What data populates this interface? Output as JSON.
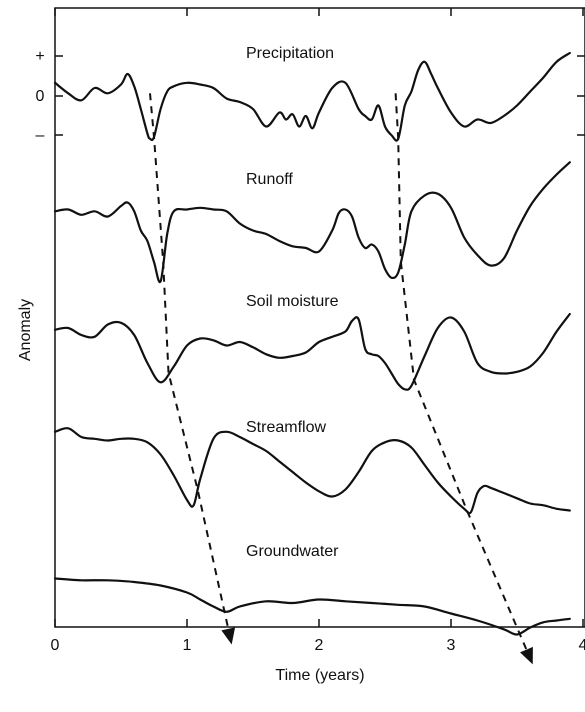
{
  "chart_data": {
    "type": "line",
    "title": "",
    "xlabel": "Time (years)",
    "ylabel": "Anomaly",
    "xlim": [
      0,
      4
    ],
    "x_ticks": [
      "0",
      "1",
      "2",
      "3",
      "4"
    ],
    "y_ticks": [
      "+",
      "0",
      "–"
    ],
    "grid": false,
    "series": [
      {
        "name": "Precipitation",
        "x": [
          0,
          0.1,
          0.2,
          0.3,
          0.4,
          0.5,
          0.55,
          0.6,
          0.65,
          0.7,
          0.72,
          0.75,
          0.8,
          0.85,
          0.9,
          1.0,
          1.1,
          1.2,
          1.3,
          1.4,
          1.5,
          1.6,
          1.7,
          1.75,
          1.8,
          1.85,
          1.9,
          1.95,
          2.0,
          2.1,
          2.2,
          2.3,
          2.35,
          2.4,
          2.45,
          2.5,
          2.55,
          2.6,
          2.65,
          2.7,
          2.75,
          2.8,
          2.85,
          2.9,
          3.0,
          3.1,
          3.2,
          3.3,
          3.4,
          3.5,
          3.6,
          3.7,
          3.8,
          3.9
        ],
        "y": [
          0.35,
          0.05,
          -0.15,
          0.2,
          0.05,
          0.3,
          0.6,
          0.25,
          -0.4,
          -1.1,
          -1.25,
          -1.2,
          -0.4,
          0.1,
          0.25,
          0.35,
          0.3,
          0.2,
          -0.1,
          -0.2,
          -0.4,
          -0.9,
          -0.5,
          -0.7,
          -0.55,
          -0.9,
          -0.6,
          -0.95,
          -0.5,
          0.2,
          0.35,
          -0.4,
          -0.6,
          -0.7,
          -0.3,
          -0.9,
          -1.15,
          -1.25,
          -0.3,
          0.1,
          0.7,
          0.95,
          0.6,
          0.2,
          -0.5,
          -0.9,
          -0.7,
          -0.8,
          -0.6,
          -0.3,
          0.1,
          0.5,
          0.95,
          1.2
        ]
      },
      {
        "name": "Runoff",
        "x": [
          0,
          0.1,
          0.2,
          0.3,
          0.4,
          0.5,
          0.55,
          0.6,
          0.65,
          0.7,
          0.75,
          0.8,
          0.85,
          0.9,
          1.0,
          1.1,
          1.2,
          1.3,
          1.4,
          1.5,
          1.6,
          1.7,
          1.8,
          1.9,
          2.0,
          2.1,
          2.15,
          2.2,
          2.25,
          2.3,
          2.35,
          2.4,
          2.45,
          2.5,
          2.55,
          2.6,
          2.65,
          2.7,
          2.8,
          2.9,
          3.0,
          3.1,
          3.2,
          3.3,
          3.4,
          3.5,
          3.6,
          3.7,
          3.8,
          3.9
        ],
        "y": [
          0.05,
          0.1,
          -0.05,
          0.05,
          -0.1,
          0.2,
          0.3,
          0.05,
          -0.5,
          -0.8,
          -1.4,
          -1.95,
          -0.6,
          0.05,
          0.1,
          0.15,
          0.1,
          0.05,
          -0.3,
          -0.5,
          -0.6,
          -0.8,
          -0.95,
          -1.0,
          -1.1,
          -0.5,
          0.0,
          0.1,
          -0.1,
          -0.7,
          -1.0,
          -0.9,
          -1.1,
          -1.6,
          -1.85,
          -1.7,
          -0.9,
          0.05,
          0.5,
          0.55,
          0.15,
          -0.7,
          -1.2,
          -1.5,
          -1.3,
          -0.5,
          0.2,
          0.7,
          1.1,
          1.45
        ]
      },
      {
        "name": "Soil moisture",
        "x": [
          0,
          0.1,
          0.2,
          0.3,
          0.4,
          0.5,
          0.6,
          0.7,
          0.8,
          0.9,
          1.0,
          1.1,
          1.2,
          1.3,
          1.4,
          1.5,
          1.6,
          1.7,
          1.8,
          1.9,
          2.0,
          2.1,
          2.2,
          2.25,
          2.3,
          2.35,
          2.4,
          2.45,
          2.5,
          2.55,
          2.6,
          2.65,
          2.7,
          2.8,
          2.9,
          3.0,
          3.1,
          3.2,
          3.3,
          3.4,
          3.5,
          3.6,
          3.7,
          3.8,
          3.9
        ],
        "y": [
          0.15,
          0.2,
          0.0,
          -0.05,
          0.3,
          0.35,
          0.0,
          -0.8,
          -1.35,
          -0.9,
          -0.3,
          -0.1,
          -0.15,
          -0.3,
          -0.2,
          -0.35,
          -0.55,
          -0.65,
          -0.6,
          -0.5,
          -0.2,
          -0.05,
          0.1,
          0.4,
          0.45,
          -0.4,
          -0.55,
          -0.6,
          -0.8,
          -1.1,
          -1.4,
          -1.55,
          -1.45,
          -0.6,
          0.2,
          0.5,
          0.1,
          -0.8,
          -1.05,
          -1.1,
          -1.05,
          -0.9,
          -0.5,
          0.1,
          0.6
        ]
      },
      {
        "name": "Streamflow",
        "x": [
          0,
          0.1,
          0.2,
          0.3,
          0.4,
          0.5,
          0.6,
          0.7,
          0.8,
          0.9,
          1.0,
          1.05,
          1.1,
          1.2,
          1.3,
          1.4,
          1.5,
          1.6,
          1.7,
          1.8,
          1.9,
          2.0,
          2.1,
          2.2,
          2.3,
          2.4,
          2.5,
          2.6,
          2.7,
          2.8,
          2.9,
          3.0,
          3.1,
          3.15,
          3.2,
          3.25,
          3.3,
          3.4,
          3.5,
          3.6,
          3.7,
          3.8,
          3.9
        ],
        "y": [
          0.75,
          0.85,
          0.6,
          0.55,
          0.5,
          0.55,
          0.55,
          0.45,
          0.1,
          -0.5,
          -1.2,
          -1.35,
          -0.6,
          0.55,
          0.75,
          0.6,
          0.4,
          0.2,
          -0.1,
          -0.4,
          -0.7,
          -0.95,
          -1.1,
          -0.9,
          -0.4,
          0.2,
          0.45,
          0.5,
          0.3,
          -0.2,
          -0.7,
          -1.1,
          -1.45,
          -1.55,
          -1.0,
          -0.8,
          -0.85,
          -1.0,
          -1.15,
          -1.3,
          -1.35,
          -1.45,
          -1.5
        ]
      },
      {
        "name": "Groundwater",
        "x": [
          0,
          0.2,
          0.4,
          0.6,
          0.8,
          1.0,
          1.1,
          1.2,
          1.3,
          1.4,
          1.6,
          1.8,
          2.0,
          2.2,
          2.4,
          2.6,
          2.8,
          3.0,
          3.2,
          3.4,
          3.5,
          3.6,
          3.7,
          3.8,
          3.9
        ],
        "y": [
          0.1,
          0.05,
          0.05,
          0.0,
          -0.1,
          -0.3,
          -0.5,
          -0.7,
          -0.85,
          -0.7,
          -0.55,
          -0.6,
          -0.5,
          -0.55,
          -0.6,
          -0.65,
          -0.7,
          -0.9,
          -1.1,
          -1.35,
          -1.5,
          -1.3,
          -1.15,
          -1.1,
          -1.05
        ]
      }
    ],
    "lag_lines": [
      {
        "x": [
          0.72,
          0.75,
          0.82,
          0.86,
          1.08,
          1.28
        ],
        "y_series": [
          "Precipitation",
          "Precipitation",
          "Runoff",
          "Soil moisture",
          "Streamflow",
          "Groundwater"
        ]
      },
      {
        "x": [
          2.58,
          2.6,
          2.62,
          2.72,
          3.12,
          3.55
        ],
        "y_series": [
          "Precipitation",
          "Precipitation",
          "Runoff",
          "Soil moisture",
          "Streamflow",
          "Groundwater"
        ]
      }
    ]
  }
}
